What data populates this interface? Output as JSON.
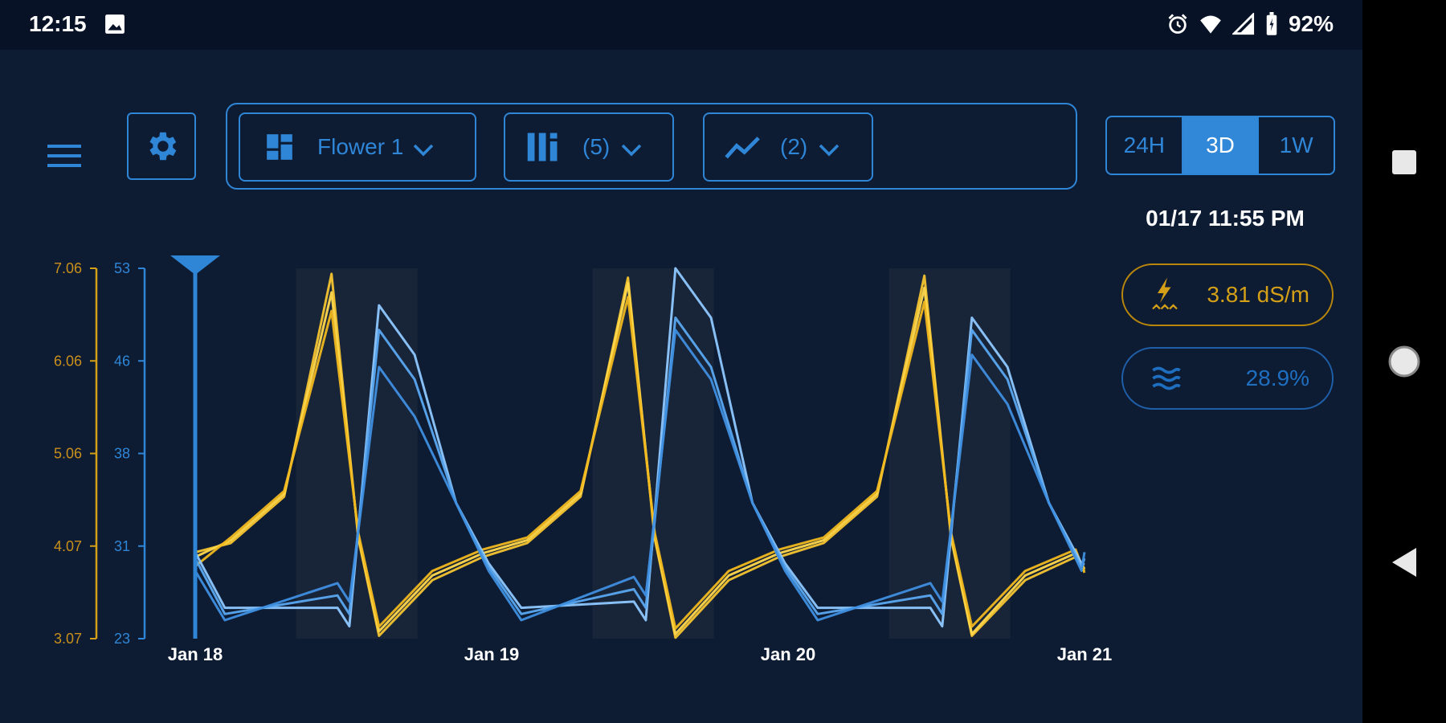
{
  "status_bar": {
    "time": "12:15",
    "battery": "92%",
    "icons": [
      "image-icon",
      "alarm-icon",
      "wifi-icon",
      "signal-icon",
      "battery-icon"
    ]
  },
  "toolbar": {
    "menu_icon": "menu-icon",
    "settings_icon": "gear-icon",
    "room": {
      "label": "Flower 1",
      "icon": "dashboard-icon"
    },
    "sensors": {
      "label": "(5)",
      "icon": "columns-icon"
    },
    "metrics": {
      "label": "(2)",
      "icon": "trend-icon"
    },
    "ranges": [
      "24H",
      "3D",
      "1W"
    ],
    "active_range": "3D"
  },
  "readout": {
    "datetime": "01/17 11:55 PM",
    "ec": {
      "value": "3.81 dS/m",
      "icon": "bolt-icon",
      "color": "#d4a017"
    },
    "moisture": {
      "value": "28.9%",
      "icon": "water-icon",
      "color": "#2f86d6"
    }
  },
  "colors": {
    "ec": "#f4c430",
    "moisture": "#5aa8f0",
    "accent": "#2f86d6",
    "bg": "#0d1b33"
  },
  "chart_data": {
    "type": "line",
    "x_ticks": [
      "Jan 18",
      "Jan 19",
      "Jan 20",
      "Jan 21"
    ],
    "y_left": {
      "unit": "EC",
      "ticks": [
        "7.06",
        "6.06",
        "5.06",
        "4.07",
        "3.07"
      ],
      "range": [
        3.07,
        7.06
      ],
      "color": "#d4a017"
    },
    "y_right": {
      "unit": "moisture",
      "ticks": [
        "53",
        "46",
        "38",
        "31",
        "23"
      ],
      "range": [
        23,
        53
      ],
      "color": "#2f86d6"
    },
    "shaded_periods_days": [
      [
        0.34,
        0.75
      ],
      [
        1.34,
        1.75
      ],
      [
        2.34,
        2.75
      ]
    ],
    "cursor": "Jan 18",
    "series": [
      {
        "metric": "ec",
        "color": "#f4c430",
        "peaks": [
          7.0,
          6.96,
          6.98
        ],
        "troughs": [
          3.1,
          3.08,
          3.1
        ],
        "start": 4.0,
        "end": 3.8
      },
      {
        "metric": "ec",
        "color": "#ffd84d",
        "peaks": [
          6.8,
          6.9,
          6.85
        ],
        "troughs": [
          3.15,
          3.12,
          3.12
        ],
        "start": 3.95,
        "end": 3.82
      },
      {
        "metric": "ec",
        "color": "#f0b81f",
        "peaks": [
          6.6,
          6.75,
          6.7
        ],
        "troughs": [
          3.2,
          3.18,
          3.2
        ],
        "start": 3.85,
        "end": 3.78
      },
      {
        "metric": "moisture",
        "color": "#8ec8ff",
        "peaks": [
          50,
          53,
          49
        ],
        "troughs": [
          24,
          24.5,
          24
        ],
        "start": 30,
        "end": 29
      },
      {
        "metric": "moisture",
        "color": "#5aa8f0",
        "peaks": [
          48,
          49,
          48
        ],
        "troughs": [
          25,
          25.5,
          25
        ],
        "start": 29.5,
        "end": 29.5
      },
      {
        "metric": "moisture",
        "color": "#3f8fe0",
        "peaks": [
          45,
          48,
          46
        ],
        "troughs": [
          26,
          26.5,
          26
        ],
        "start": 28.5,
        "end": 30
      }
    ]
  }
}
